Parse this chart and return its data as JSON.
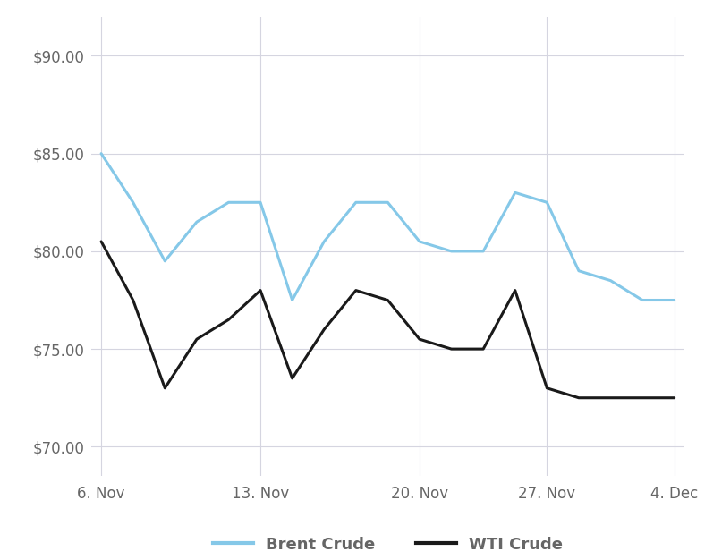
{
  "brent": [
    85.0,
    82.5,
    79.5,
    81.5,
    82.5,
    82.5,
    77.5,
    80.5,
    82.5,
    82.5,
    80.5,
    80.0,
    80.0,
    83.0,
    82.5,
    79.0,
    78.5,
    77.5,
    77.5
  ],
  "wti": [
    80.5,
    77.5,
    73.0,
    75.5,
    76.5,
    78.0,
    73.5,
    76.0,
    78.0,
    77.5,
    75.5,
    75.0,
    75.0,
    78.0,
    73.0,
    72.5,
    72.5,
    72.5,
    72.5
  ],
  "x_ticks_pos": [
    0,
    5,
    10,
    14,
    18
  ],
  "x_tick_labels": [
    "6. Nov",
    "13. Nov",
    "20. Nov",
    "27. Nov",
    "4. Dec"
  ],
  "y_ticks": [
    70.0,
    75.0,
    80.0,
    85.0,
    90.0
  ],
  "ylim": [
    68.5,
    92.0
  ],
  "xlim": [
    -0.3,
    18.3
  ],
  "brent_color": "#85c8e8",
  "wti_color": "#1a1a1a",
  "background_color": "#ffffff",
  "grid_color": "#d5d5e0",
  "legend_brent": "Brent Crude",
  "legend_wti": "WTI Crude",
  "linewidth": 2.2,
  "tick_color": "#666666",
  "font_size_tick": 12,
  "font_size_legend": 13
}
